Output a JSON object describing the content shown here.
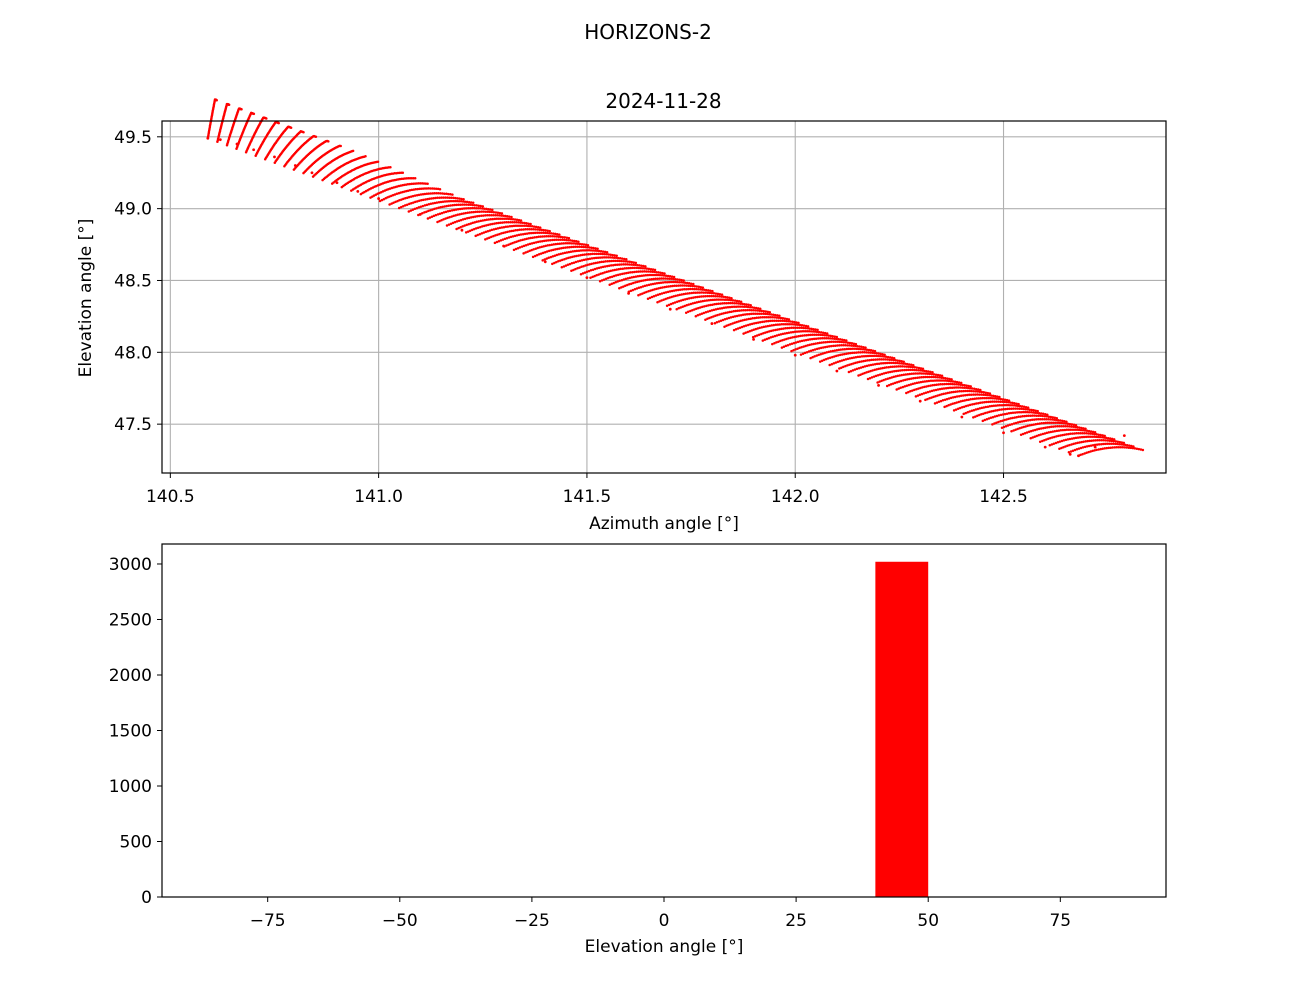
{
  "figure": {
    "suptitle": "HORIZONS-2"
  },
  "colors": {
    "marker": "#ff0000",
    "grid": "#b0b0b0",
    "axes": "#000000",
    "background": "#ffffff"
  },
  "chart_data": [
    {
      "type": "scatter",
      "title": "2024-11-28",
      "xlabel": "Azimuth angle [°]",
      "ylabel": "Elevation angle [°]",
      "xlim": [
        140.48,
        142.89
      ],
      "ylim": [
        47.16,
        49.61
      ],
      "xticks": [
        140.5,
        141.0,
        141.5,
        142.0,
        142.5
      ],
      "xtick_labels": [
        "140.5",
        "141.0",
        "141.5",
        "142.0",
        "142.5"
      ],
      "yticks": [
        47.5,
        48.0,
        48.5,
        49.0,
        49.5
      ],
      "ytick_labels": [
        "47.5",
        "48.0",
        "48.5",
        "49.0",
        "49.5"
      ],
      "grid": true,
      "marker": "point",
      "approx_point_count": 3020,
      "trend_lower_edge": {
        "x": [
          140.59,
          142.68
        ],
        "y": [
          49.49,
          47.28
        ]
      },
      "trend_upper_edge": {
        "x": [
          140.84,
          142.79
        ],
        "y": [
          49.51,
          47.42
        ]
      },
      "series": [
        {
          "x": [
            140.59,
            140.62,
            140.66,
            140.7,
            140.75,
            140.8,
            140.84,
            140.9,
            140.95,
            141.0,
            141.1,
            141.2,
            141.3,
            141.4,
            141.5,
            141.6,
            141.7,
            141.8,
            141.9,
            142.0,
            142.1,
            142.2,
            142.3,
            142.4,
            142.5,
            142.6,
            142.66,
            142.68,
            142.72,
            142.76,
            142.79
          ],
          "y": [
            49.49,
            49.48,
            49.45,
            49.41,
            49.36,
            49.3,
            49.25,
            49.18,
            49.12,
            49.07,
            48.96,
            48.85,
            48.74,
            48.63,
            48.52,
            48.41,
            48.3,
            48.2,
            48.09,
            47.98,
            47.87,
            47.77,
            47.66,
            47.55,
            47.44,
            47.34,
            47.29,
            47.28,
            47.34,
            47.39,
            47.42
          ]
        }
      ]
    },
    {
      "type": "bar",
      "title": "",
      "xlabel": "Elevation angle [°]",
      "ylabel": "",
      "xlim": [
        -95,
        95
      ],
      "ylim": [
        0,
        3180
      ],
      "xticks": [
        -75,
        -50,
        -25,
        0,
        25,
        50,
        75
      ],
      "xtick_labels": [
        "−75",
        "−50",
        "−25",
        "0",
        "25",
        "50",
        "75"
      ],
      "yticks": [
        0,
        500,
        1000,
        1500,
        2000,
        2500,
        3000
      ],
      "ytick_labels": [
        "0",
        "500",
        "1000",
        "1500",
        "2000",
        "2500",
        "3000"
      ],
      "grid": false,
      "bin_edges": [
        40,
        50
      ],
      "values": [
        3020
      ]
    }
  ]
}
